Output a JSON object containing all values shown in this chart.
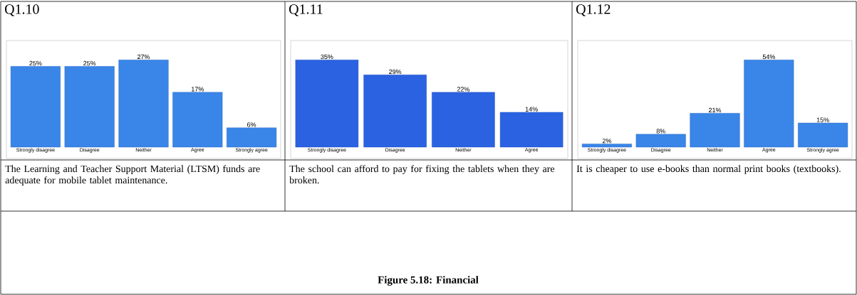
{
  "chart_data": [
    {
      "type": "bar",
      "title": "Q1.10",
      "categories": [
        "Strongly disagree",
        "Disagree",
        "Neither",
        "Agree",
        "Strongly agree"
      ],
      "values": [
        25,
        25,
        27,
        17,
        6
      ],
      "value_labels": [
        "25%",
        "25%",
        "27%",
        "17%",
        "6%"
      ],
      "color": "#3a85e8",
      "annotations": [
        "The Learning and Teacher Support Material (LTSM) funds are adequate for mobile tablet maintenance.",
        "Figure 5.18: Financial"
      ]
    },
    {
      "type": "bar",
      "title": "Q1.11",
      "categories": [
        "Strongly disagree",
        "Disagree",
        "Neither",
        "Agree"
      ],
      "values": [
        35,
        29,
        22,
        14
      ],
      "value_labels": [
        "35%",
        "29%",
        "22%",
        "14%"
      ],
      "color": "#2a62e2",
      "annotations": [
        "The school can afford to pay for fixing the tablets when they are broken."
      ]
    },
    {
      "type": "bar",
      "title": "Q1.12",
      "categories": [
        "Strongly disagree",
        "Disagree",
        "Neither",
        "Agree",
        "Strongly agree"
      ],
      "values": [
        2,
        8,
        21,
        54,
        15
      ],
      "value_labels": [
        "2%",
        "8%",
        "21%",
        "54%",
        "15%"
      ],
      "color": "#3a85e8",
      "annotations": [
        "It is cheaper to use e-books than normal print books (textbooks)."
      ]
    }
  ]
}
